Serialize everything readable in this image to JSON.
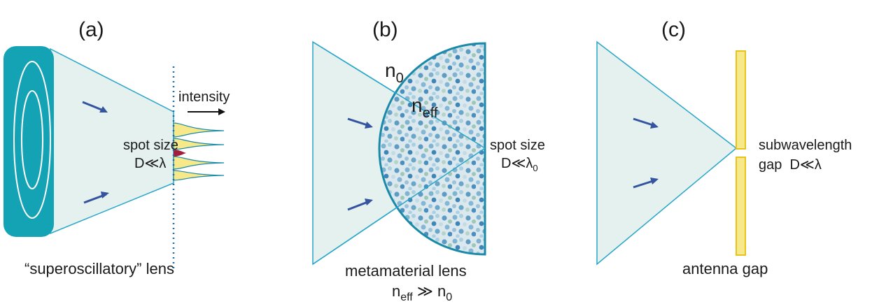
{
  "panels": [
    {
      "label": "(a)",
      "intensity": "intensity",
      "spot_size": "spot size",
      "condition": "D≪λ",
      "caption": "“superoscillatory” lens"
    },
    {
      "label": "(b)",
      "medium_index": {
        "n": "n",
        "sub": "0"
      },
      "effective_index": {
        "n": "n",
        "sub": "eff"
      },
      "spot_size": "spot size",
      "condition": {
        "main": "D≪λ",
        "sub": "0"
      },
      "caption": "metamaterial lens",
      "relation": {
        "lhs": "n",
        "lhs_sub": "eff",
        "mid": " ≫ n",
        "rhs_sub": "0"
      }
    },
    {
      "label": "(c)",
      "note": "subwavelength",
      "condition": "gap  D≪λ",
      "caption": "antenna gap"
    }
  ]
}
